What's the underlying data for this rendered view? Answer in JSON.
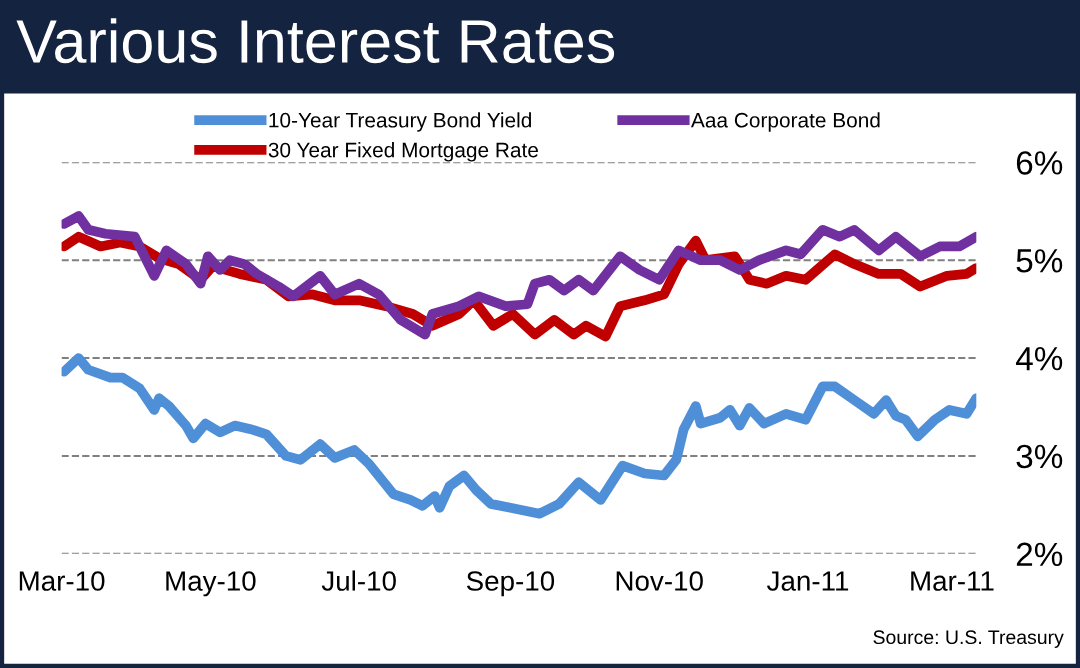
{
  "chart_data": {
    "type": "line",
    "title": "Various Interest Rates",
    "annotations": [
      "Source: U.S. Treasury"
    ],
    "xlim": [
      "2010-03-01",
      "2011-03-11"
    ],
    "xticks": [
      {
        "value": "2010-03-01",
        "label": "Mar-10"
      },
      {
        "value": "2010-05-01",
        "label": "May-10"
      },
      {
        "value": "2010-07-01",
        "label": "Jul-10"
      },
      {
        "value": "2010-09-01",
        "label": "Sep-10"
      },
      {
        "value": "2010-11-01",
        "label": "Nov-10"
      },
      {
        "value": "2011-01-01",
        "label": "Jan-11"
      },
      {
        "value": "2011-03-01",
        "label": "Mar-11"
      }
    ],
    "ylim": [
      2,
      6
    ],
    "yticks": [
      {
        "value": 2,
        "label": "2%"
      },
      {
        "value": 3,
        "label": "3%"
      },
      {
        "value": 4,
        "label": "4%"
      },
      {
        "value": 5,
        "label": "5%"
      },
      {
        "value": 6,
        "label": "6%"
      }
    ],
    "grid": "y",
    "legend": "top",
    "marker": "none",
    "line_style": "solid",
    "series": [
      {
        "name": "10-Year Treasury Bond Yield",
        "color": "#4f8fd8",
        "x": [
          "2010-03-02",
          "2010-03-08",
          "2010-03-12",
          "2010-03-21",
          "2010-03-26",
          "2010-04-02",
          "2010-04-08",
          "2010-04-10",
          "2010-04-14",
          "2010-04-21",
          "2010-04-24",
          "2010-04-29",
          "2010-05-05",
          "2010-05-11",
          "2010-05-18",
          "2010-05-24",
          "2010-06-01",
          "2010-06-07",
          "2010-06-15",
          "2010-06-21",
          "2010-06-29",
          "2010-07-05",
          "2010-07-15",
          "2010-07-22",
          "2010-07-27",
          "2010-08-01",
          "2010-08-03",
          "2010-08-07",
          "2010-08-13",
          "2010-08-18",
          "2010-08-24",
          "2010-09-01",
          "2010-09-13",
          "2010-09-21",
          "2010-09-29",
          "2010-10-08",
          "2010-10-17",
          "2010-10-26",
          "2010-11-03",
          "2010-11-08",
          "2010-11-11",
          "2010-11-16",
          "2010-11-18",
          "2010-11-26",
          "2010-11-30",
          "2010-12-04",
          "2010-12-08",
          "2010-12-14",
          "2010-12-23",
          "2010-12-31",
          "2011-01-07",
          "2011-01-12",
          "2011-01-20",
          "2011-01-28",
          "2011-02-02",
          "2011-02-06",
          "2011-02-10",
          "2011-02-15",
          "2011-02-22",
          "2011-02-28",
          "2011-03-07",
          "2011-03-11"
        ],
        "values": [
          3.86,
          4.0,
          3.88,
          3.8,
          3.8,
          3.69,
          3.47,
          3.59,
          3.51,
          3.31,
          3.18,
          3.33,
          3.24,
          3.31,
          3.27,
          3.22,
          3.0,
          2.96,
          3.12,
          2.98,
          3.06,
          2.92,
          2.61,
          2.55,
          2.49,
          2.59,
          2.47,
          2.69,
          2.8,
          2.65,
          2.51,
          2.47,
          2.41,
          2.51,
          2.73,
          2.55,
          2.9,
          2.82,
          2.8,
          2.96,
          3.27,
          3.51,
          3.33,
          3.39,
          3.47,
          3.31,
          3.49,
          3.33,
          3.43,
          3.37,
          3.71,
          3.71,
          3.57,
          3.43,
          3.57,
          3.41,
          3.37,
          3.2,
          3.37,
          3.47,
          3.43,
          3.59
        ]
      },
      {
        "name": "30 Year Fixed Mortgage Rate",
        "color": "#c00000",
        "x": [
          "2010-03-02",
          "2010-03-08",
          "2010-03-17",
          "2010-03-25",
          "2010-04-02",
          "2010-04-10",
          "2010-04-18",
          "2010-04-27",
          "2010-05-02",
          "2010-05-13",
          "2010-05-24",
          "2010-06-02",
          "2010-06-12",
          "2010-06-21",
          "2010-07-01",
          "2010-07-12",
          "2010-07-23",
          "2010-07-31",
          "2010-08-11",
          "2010-08-17",
          "2010-08-25",
          "2010-09-02",
          "2010-09-11",
          "2010-09-19",
          "2010-09-27",
          "2010-10-02",
          "2010-10-10",
          "2010-10-16",
          "2010-10-26",
          "2010-11-03",
          "2010-11-09",
          "2010-11-16",
          "2010-11-20",
          "2010-12-02",
          "2010-12-08",
          "2010-12-15",
          "2010-12-23",
          "2010-12-31",
          "2011-01-12",
          "2011-01-20",
          "2011-01-30",
          "2011-02-08",
          "2011-02-16",
          "2011-02-27",
          "2011-03-07",
          "2011-03-11"
        ],
        "values": [
          5.14,
          5.24,
          5.14,
          5.18,
          5.14,
          5.02,
          4.96,
          4.8,
          4.94,
          4.86,
          4.8,
          4.63,
          4.65,
          4.59,
          4.59,
          4.53,
          4.45,
          4.33,
          4.45,
          4.59,
          4.33,
          4.45,
          4.24,
          4.39,
          4.24,
          4.33,
          4.22,
          4.53,
          4.59,
          4.65,
          4.96,
          5.2,
          5.0,
          5.04,
          4.8,
          4.76,
          4.84,
          4.8,
          5.06,
          4.96,
          4.86,
          4.86,
          4.73,
          4.84,
          4.86,
          4.92
        ]
      },
      {
        "name": "Aaa Corporate Bond",
        "color": "#7030a0",
        "x": [
          "2010-03-02",
          "2010-03-08",
          "2010-03-12",
          "2010-03-19",
          "2010-03-31",
          "2010-04-08",
          "2010-04-13",
          "2010-04-21",
          "2010-04-27",
          "2010-04-30",
          "2010-05-05",
          "2010-05-09",
          "2010-05-15",
          "2010-05-20",
          "2010-05-29",
          "2010-06-04",
          "2010-06-15",
          "2010-06-21",
          "2010-07-01",
          "2010-07-09",
          "2010-07-18",
          "2010-07-28",
          "2010-07-31",
          "2010-08-11",
          "2010-08-19",
          "2010-08-30",
          "2010-09-08",
          "2010-09-11",
          "2010-09-17",
          "2010-09-23",
          "2010-09-29",
          "2010-10-05",
          "2010-10-16",
          "2010-10-24",
          "2010-11-01",
          "2010-11-09",
          "2010-11-18",
          "2010-11-26",
          "2010-12-04",
          "2010-12-12",
          "2010-12-23",
          "2010-12-29",
          "2011-01-07",
          "2011-01-14",
          "2011-01-20",
          "2011-01-30",
          "2011-02-06",
          "2011-02-16",
          "2011-02-24",
          "2011-03-04",
          "2011-03-11"
        ],
        "values": [
          5.37,
          5.45,
          5.31,
          5.27,
          5.24,
          4.84,
          5.1,
          4.96,
          4.76,
          5.04,
          4.9,
          5.0,
          4.96,
          4.86,
          4.73,
          4.63,
          4.84,
          4.65,
          4.76,
          4.65,
          4.39,
          4.24,
          4.45,
          4.53,
          4.63,
          4.53,
          4.55,
          4.76,
          4.8,
          4.69,
          4.8,
          4.69,
          5.04,
          4.9,
          4.8,
          5.1,
          5.0,
          5.0,
          4.9,
          5.0,
          5.1,
          5.06,
          5.31,
          5.24,
          5.31,
          5.1,
          5.24,
          5.04,
          5.14,
          5.14,
          5.24
        ]
      }
    ]
  }
}
